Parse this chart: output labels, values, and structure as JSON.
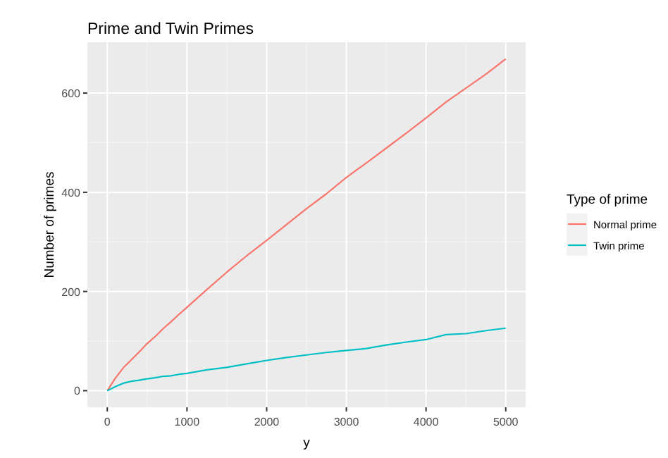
{
  "chart_data": {
    "type": "line",
    "title": "Prime and Twin Primes",
    "xlabel": "y",
    "ylabel": "Number of primes",
    "legend_title": "Type of prime",
    "legend": "right",
    "grid": true,
    "x": [
      0,
      100,
      200,
      300,
      400,
      500,
      600,
      700,
      800,
      900,
      1000,
      1250,
      1500,
      1750,
      2000,
      2250,
      2500,
      2750,
      3000,
      3250,
      3500,
      3750,
      4000,
      4250,
      4500,
      4750,
      5000
    ],
    "series": [
      {
        "name": "Normal prime",
        "color": "#f8766d",
        "values": [
          0,
          25,
          46,
          62,
          78,
          95,
          109,
          125,
          139,
          154,
          168,
          204,
          239,
          272,
          303,
          335,
          367,
          397,
          430,
          459,
          489,
          519,
          550,
          582,
          610,
          638,
          669
        ]
      },
      {
        "name": "Twin prime",
        "color": "#00bfc4",
        "values": [
          0,
          8,
          15,
          19,
          21,
          24,
          26,
          29,
          30,
          33,
          35,
          42,
          47,
          54,
          61,
          67,
          72,
          77,
          81,
          85,
          92,
          98,
          103,
          113,
          115,
          121,
          126
        ]
      }
    ],
    "xlim": [
      -250,
      5250
    ],
    "ylim": [
      -33.45,
      702.45
    ],
    "xticks": [
      0,
      1000,
      2000,
      3000,
      4000,
      5000
    ],
    "yticks": [
      0,
      200,
      400,
      600
    ]
  }
}
